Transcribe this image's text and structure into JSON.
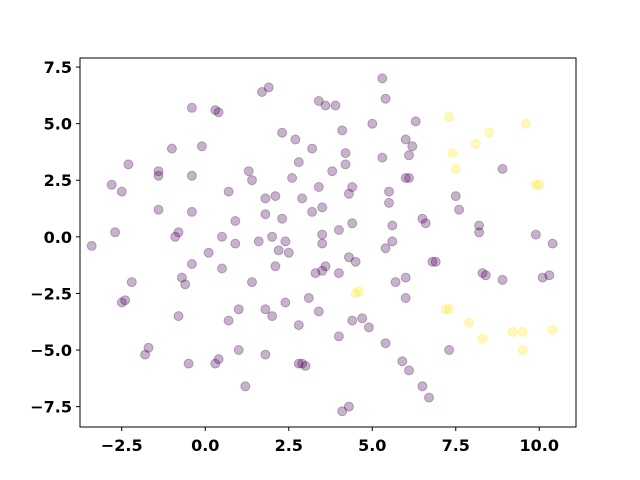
{
  "chart_data": {
    "type": "scatter",
    "title": "",
    "xlabel": "",
    "ylabel": "",
    "xlim": [
      -3.75,
      11.1
    ],
    "ylim": [
      -8.4,
      7.9
    ],
    "grid": false,
    "x_ticks": [
      -2.5,
      0.0,
      2.5,
      5.0,
      7.5,
      10.0
    ],
    "x_tick_labels": [
      "−2.5",
      "0.0",
      "2.5",
      "5.0",
      "7.5",
      "10.0"
    ],
    "y_ticks": [
      7.5,
      5.0,
      2.5,
      0.0,
      -2.5,
      -5.0,
      -7.5
    ],
    "y_tick_labels": [
      "7.5",
      "5.0",
      "2.5",
      "0.0",
      "−2.5",
      "−5.0",
      "−7.5"
    ],
    "marker_alpha": 0.3,
    "colors": {
      "class0": "#440154",
      "class1": "#fde725"
    },
    "series": [
      {
        "color": "#440154",
        "points": [
          [
            -3.4,
            -0.4
          ],
          [
            -2.8,
            2.3
          ],
          [
            -2.7,
            0.2
          ],
          [
            -2.5,
            -2.9
          ],
          [
            -2.4,
            -2.8
          ],
          [
            -2.5,
            2.0
          ],
          [
            -2.3,
            3.2
          ],
          [
            -2.2,
            -2.0
          ],
          [
            -1.8,
            -5.2
          ],
          [
            -1.7,
            -4.9
          ],
          [
            -1.4,
            2.7
          ],
          [
            -1.4,
            2.9
          ],
          [
            -1.4,
            1.2
          ],
          [
            -1.0,
            3.9
          ],
          [
            -0.9,
            0.0
          ],
          [
            -0.8,
            -3.5
          ],
          [
            -0.8,
            0.2
          ],
          [
            -0.7,
            -1.8
          ],
          [
            -0.6,
            -2.1
          ],
          [
            -0.5,
            -5.6
          ],
          [
            -0.4,
            -1.2
          ],
          [
            -0.4,
            1.1
          ],
          [
            -0.4,
            2.7
          ],
          [
            -0.4,
            5.7
          ],
          [
            -0.1,
            4.0
          ],
          [
            0.1,
            -0.7
          ],
          [
            0.3,
            -5.6
          ],
          [
            0.3,
            5.6
          ],
          [
            0.4,
            5.5
          ],
          [
            0.4,
            -5.4
          ],
          [
            0.5,
            -1.4
          ],
          [
            0.5,
            0.0
          ],
          [
            0.7,
            2.0
          ],
          [
            0.7,
            -3.7
          ],
          [
            0.9,
            -0.3
          ],
          [
            0.9,
            0.7
          ],
          [
            1.0,
            -3.2
          ],
          [
            1.0,
            -5.0
          ],
          [
            1.2,
            -6.6
          ],
          [
            1.3,
            2.9
          ],
          [
            1.4,
            2.5
          ],
          [
            1.4,
            -2.0
          ],
          [
            1.6,
            -0.2
          ],
          [
            1.7,
            6.4
          ],
          [
            1.8,
            -5.2
          ],
          [
            1.8,
            1.0
          ],
          [
            1.8,
            -3.2
          ],
          [
            1.8,
            1.7
          ],
          [
            1.9,
            6.6
          ],
          [
            2.0,
            0.0
          ],
          [
            2.0,
            -3.5
          ],
          [
            2.1,
            -1.3
          ],
          [
            2.1,
            1.8
          ],
          [
            2.2,
            -0.6
          ],
          [
            2.3,
            0.8
          ],
          [
            2.3,
            4.6
          ],
          [
            2.4,
            -0.2
          ],
          [
            2.4,
            -2.9
          ],
          [
            2.5,
            -0.7
          ],
          [
            2.6,
            2.6
          ],
          [
            2.7,
            4.3
          ],
          [
            2.8,
            3.3
          ],
          [
            2.8,
            -3.9
          ],
          [
            2.8,
            -5.6
          ],
          [
            2.9,
            -5.6
          ],
          [
            2.9,
            1.7
          ],
          [
            3.0,
            -5.7
          ],
          [
            3.1,
            -2.7
          ],
          [
            3.2,
            3.9
          ],
          [
            3.2,
            1.1
          ],
          [
            3.3,
            -1.6
          ],
          [
            3.4,
            6.0
          ],
          [
            3.4,
            -3.3
          ],
          [
            3.4,
            2.2
          ],
          [
            3.5,
            -1.5
          ],
          [
            3.5,
            -0.3
          ],
          [
            3.5,
            0.1
          ],
          [
            3.5,
            1.3
          ],
          [
            3.6,
            5.8
          ],
          [
            3.6,
            -1.3
          ],
          [
            3.8,
            2.9
          ],
          [
            3.9,
            5.8
          ],
          [
            4.0,
            -4.4
          ],
          [
            4.0,
            -1.6
          ],
          [
            4.0,
            0.3
          ],
          [
            4.1,
            4.7
          ],
          [
            4.1,
            -7.7
          ],
          [
            4.2,
            3.2
          ],
          [
            4.2,
            3.7
          ],
          [
            4.3,
            -7.5
          ],
          [
            4.3,
            -0.9
          ],
          [
            4.3,
            1.9
          ],
          [
            4.4,
            0.6
          ],
          [
            4.4,
            -3.7
          ],
          [
            4.4,
            2.2
          ],
          [
            4.5,
            -1.1
          ],
          [
            4.7,
            -3.6
          ],
          [
            4.9,
            -4.0
          ],
          [
            5.0,
            5.0
          ],
          [
            5.3,
            7.0
          ],
          [
            5.3,
            3.5
          ],
          [
            5.4,
            -0.5
          ],
          [
            5.4,
            6.1
          ],
          [
            5.4,
            -4.7
          ],
          [
            5.5,
            1.5
          ],
          [
            5.5,
            2.0
          ],
          [
            5.6,
            0.5
          ],
          [
            5.6,
            -0.2
          ],
          [
            5.7,
            -2.0
          ],
          [
            5.9,
            -5.5
          ],
          [
            6.0,
            2.6
          ],
          [
            6.0,
            -2.7
          ],
          [
            6.0,
            -1.8
          ],
          [
            6.0,
            4.3
          ],
          [
            6.1,
            2.6
          ],
          [
            6.1,
            3.6
          ],
          [
            6.1,
            -5.9
          ],
          [
            6.2,
            4.0
          ],
          [
            6.3,
            5.1
          ],
          [
            6.5,
            -6.6
          ],
          [
            6.5,
            0.8
          ],
          [
            6.6,
            0.6
          ],
          [
            6.7,
            -7.1
          ],
          [
            6.8,
            -1.1
          ],
          [
            6.9,
            -1.1
          ],
          [
            7.3,
            -5.0
          ],
          [
            7.5,
            1.8
          ],
          [
            7.6,
            1.2
          ],
          [
            8.2,
            0.5
          ],
          [
            8.2,
            0.2
          ],
          [
            8.3,
            -1.6
          ],
          [
            8.4,
            -1.7
          ],
          [
            8.9,
            -1.9
          ],
          [
            8.9,
            3.0
          ],
          [
            9.9,
            0.1
          ],
          [
            10.1,
            -1.8
          ],
          [
            10.3,
            -1.7
          ],
          [
            10.4,
            -0.3
          ]
        ]
      },
      {
        "color": "#fde725",
        "points": [
          [
            4.5,
            -2.5
          ],
          [
            4.6,
            -2.4
          ],
          [
            7.2,
            -3.2
          ],
          [
            7.3,
            5.3
          ],
          [
            7.3,
            -3.2
          ],
          [
            7.4,
            3.7
          ],
          [
            7.5,
            3.0
          ],
          [
            7.9,
            -3.8
          ],
          [
            8.1,
            4.1
          ],
          [
            8.3,
            -4.5
          ],
          [
            8.5,
            4.6
          ],
          [
            9.2,
            -4.2
          ],
          [
            9.5,
            -4.2
          ],
          [
            9.5,
            -5.0
          ],
          [
            9.6,
            5.0
          ],
          [
            9.9,
            2.3
          ],
          [
            10.0,
            2.3
          ],
          [
            10.4,
            -4.1
          ]
        ]
      }
    ]
  }
}
